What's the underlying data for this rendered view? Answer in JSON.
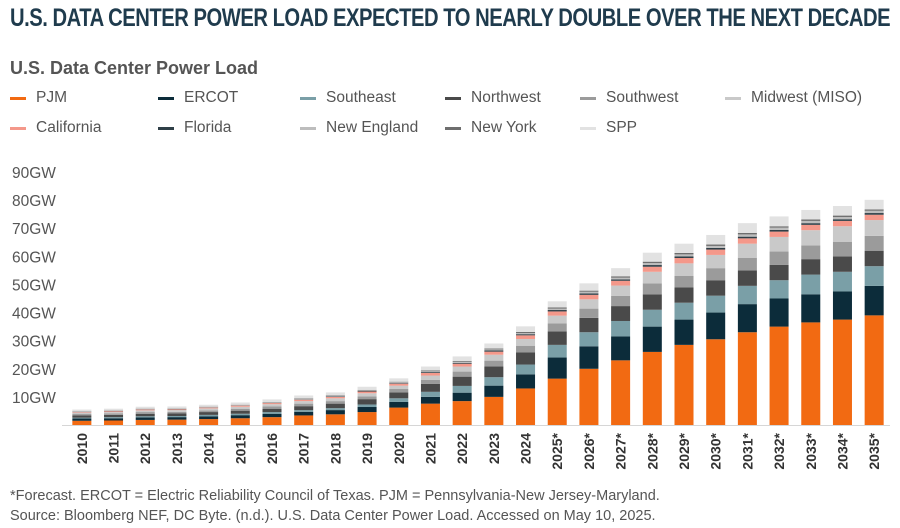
{
  "title": "U.S. DATA CENTER POWER LOAD EXPECTED TO NEARLY DOUBLE OVER THE NEXT DECADE",
  "subtitle": "U.S. Data Center Power Load",
  "footnote_line1": "*Forecast. ERCOT = Electric Reliability Council of Texas. PJM = Pennsylvania-New Jersey-Maryland.",
  "footnote_line2": "Source: Bloomberg NEF, DC Byte. (n.d.). U.S. Data Center Power Load. Accessed on May 10, 2025.",
  "colors": {
    "PJM": "#f26a12",
    "ERCOT": "#0c2c3a",
    "Southeast": "#7a9fa7",
    "Northwest": "#4a4a4a",
    "Southwest": "#9b9b9b",
    "Midwest (MISO)": "#c9c9c9",
    "California": "#f4988a",
    "Florida": "#2f3f47",
    "New England": "#bdbdbd",
    "New York": "#6e6e6e",
    "SPP": "#e2e2e2"
  },
  "legend_rows": [
    [
      "PJM",
      "ERCOT",
      "Southeast",
      "Northwest",
      "Southwest",
      "Midwest (MISO)"
    ],
    [
      "California",
      "Florida",
      "New England",
      "New York",
      "SPP"
    ]
  ],
  "chart_data": {
    "type": "bar",
    "stacked": true,
    "title": "U.S. Data Center Power Load",
    "xlabel": "",
    "ylabel": "",
    "ylim": [
      0,
      90
    ],
    "y_ticks": [
      10,
      20,
      30,
      40,
      50,
      60,
      70,
      80,
      90
    ],
    "y_tick_labels": [
      "10GW",
      "20GW",
      "30GW",
      "40GW",
      "50GW",
      "60GW",
      "70GW",
      "80GW",
      "90GW"
    ],
    "grid": false,
    "legend_position": "top",
    "categories": [
      "2010",
      "2011",
      "2012",
      "2013",
      "2014",
      "2015",
      "2016",
      "2017",
      "2018",
      "2019",
      "2020",
      "2021",
      "2022",
      "2023",
      "2024",
      "2025*",
      "2026*",
      "2027*",
      "2028*",
      "2029*",
      "2030*",
      "2031*",
      "2032*",
      "2033*",
      "2034*",
      "2035*"
    ],
    "series": [
      {
        "name": "PJM",
        "values": [
          1.5,
          1.6,
          1.8,
          1.9,
          2.1,
          2.4,
          2.8,
          3.4,
          3.8,
          4.6,
          6.2,
          7.6,
          8.5,
          10.0,
          13.0,
          16.5,
          20.0,
          23.0,
          26.0,
          28.5,
          30.5,
          33.0,
          35.0,
          36.5,
          37.5,
          39.0
        ]
      },
      {
        "name": "ERCOT",
        "values": [
          0.8,
          0.8,
          0.9,
          0.9,
          1.0,
          1.1,
          1.2,
          1.3,
          1.5,
          1.8,
          2.0,
          2.4,
          3.0,
          4.0,
          5.0,
          7.5,
          8.0,
          8.5,
          9.0,
          9.0,
          9.5,
          10.0,
          10.0,
          10.0,
          10.0,
          10.5
        ]
      },
      {
        "name": "Southeast",
        "values": [
          0.3,
          0.4,
          0.4,
          0.4,
          0.5,
          0.5,
          0.6,
          0.6,
          0.7,
          0.9,
          1.3,
          1.8,
          2.4,
          3.0,
          3.5,
          4.5,
          5.0,
          5.5,
          6.0,
          6.0,
          6.0,
          6.5,
          6.5,
          7.0,
          7.0,
          7.0
        ]
      },
      {
        "name": "Northwest",
        "values": [
          0.8,
          0.8,
          0.9,
          0.9,
          1.0,
          1.1,
          1.2,
          1.4,
          1.6,
          1.9,
          2.1,
          2.8,
          3.3,
          3.8,
          4.3,
          4.8,
          5.1,
          5.3,
          5.5,
          5.5,
          5.5,
          5.5,
          5.5,
          5.5,
          5.5,
          5.5
        ]
      },
      {
        "name": "Southwest",
        "values": [
          0.5,
          0.5,
          0.6,
          0.6,
          0.6,
          0.7,
          0.8,
          0.9,
          0.9,
          1.0,
          1.2,
          1.5,
          1.8,
          2.1,
          2.4,
          2.8,
          3.3,
          3.6,
          3.9,
          4.1,
          4.3,
          4.5,
          4.7,
          4.9,
          5.1,
          5.3
        ]
      },
      {
        "name": "Midwest (MISO)",
        "values": [
          0.5,
          0.5,
          0.6,
          0.6,
          0.7,
          0.7,
          0.8,
          0.9,
          1.0,
          1.1,
          1.2,
          1.5,
          1.8,
          2.1,
          2.4,
          2.8,
          3.3,
          3.7,
          4.1,
          4.4,
          4.7,
          5.0,
          5.2,
          5.4,
          5.6,
          5.6
        ]
      },
      {
        "name": "California",
        "values": [
          0.2,
          0.3,
          0.3,
          0.3,
          0.3,
          0.4,
          0.4,
          0.5,
          0.5,
          0.6,
          0.7,
          0.9,
          1.0,
          1.1,
          1.3,
          1.5,
          1.6,
          1.7,
          1.8,
          1.9,
          1.9,
          1.9,
          1.9,
          1.9,
          1.9,
          1.9
        ]
      },
      {
        "name": "Florida",
        "values": [
          0.1,
          0.1,
          0.1,
          0.1,
          0.1,
          0.1,
          0.1,
          0.1,
          0.2,
          0.2,
          0.2,
          0.3,
          0.3,
          0.4,
          0.4,
          0.5,
          0.5,
          0.5,
          0.6,
          0.6,
          0.6,
          0.6,
          0.6,
          0.6,
          0.6,
          0.6
        ]
      },
      {
        "name": "New England",
        "values": [
          0.1,
          0.1,
          0.1,
          0.1,
          0.1,
          0.1,
          0.2,
          0.2,
          0.2,
          0.2,
          0.3,
          0.3,
          0.4,
          0.4,
          0.4,
          0.5,
          0.6,
          0.6,
          0.7,
          0.7,
          0.7,
          0.8,
          0.8,
          0.8,
          0.8,
          0.8
        ]
      },
      {
        "name": "New York",
        "values": [
          0.1,
          0.1,
          0.1,
          0.1,
          0.1,
          0.1,
          0.1,
          0.2,
          0.2,
          0.2,
          0.2,
          0.3,
          0.3,
          0.3,
          0.4,
          0.4,
          0.4,
          0.5,
          0.5,
          0.5,
          0.5,
          0.5,
          0.5,
          0.5,
          0.5,
          0.5
        ]
      },
      {
        "name": "SPP",
        "values": [
          0.6,
          0.6,
          0.7,
          0.7,
          0.7,
          0.8,
          0.9,
          1.0,
          1.0,
          1.1,
          1.2,
          1.4,
          1.6,
          1.8,
          2.0,
          2.2,
          2.6,
          2.9,
          3.2,
          3.3,
          3.4,
          3.5,
          3.5,
          3.4,
          3.4,
          3.4
        ]
      }
    ]
  }
}
